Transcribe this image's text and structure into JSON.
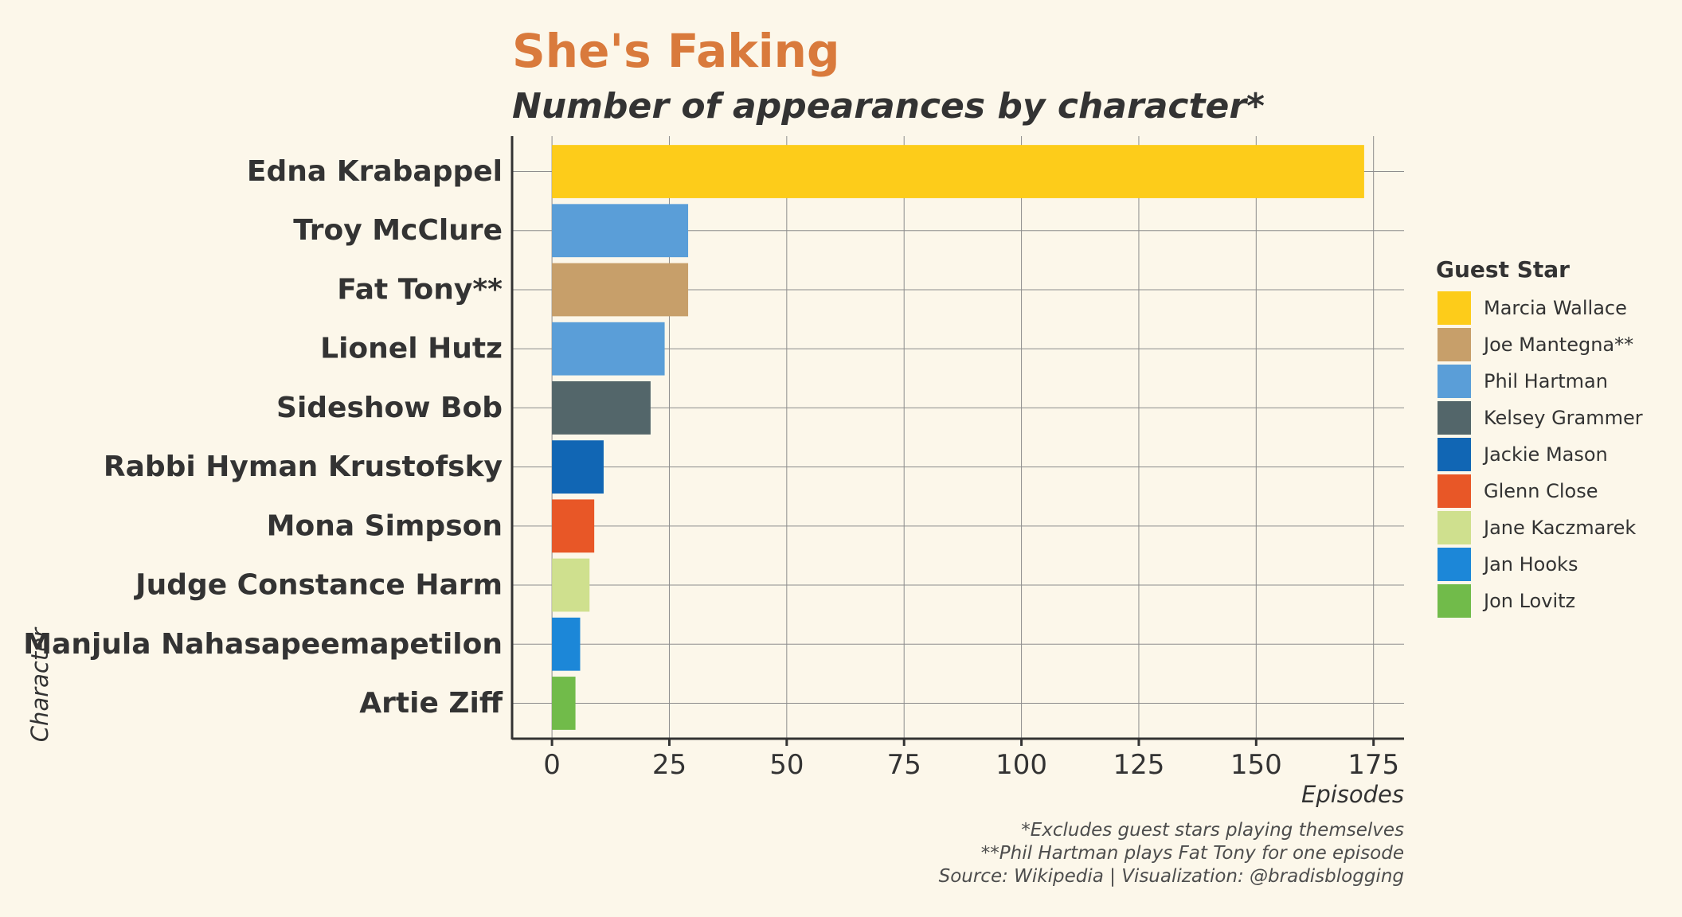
{
  "chart_data": {
    "type": "bar",
    "orientation": "horizontal",
    "title": "She's Faking",
    "subtitle": "Number of appearances by character*",
    "xlabel": "Episodes",
    "ylabel": "Character",
    "xlim": [
      -8.5,
      181.5
    ],
    "xticks": [
      0,
      25,
      50,
      75,
      100,
      125,
      150,
      175
    ],
    "grid": true,
    "legend": {
      "title": "Guest Star",
      "placement": "right",
      "entries": [
        {
          "name": "Marcia Wallace",
          "color": "#fdcc1a"
        },
        {
          "name": "Joe Mantegna**",
          "color": "#c79f6a"
        },
        {
          "name": "Phil Hartman",
          "color": "#5a9ed8"
        },
        {
          "name": "Kelsey Grammer",
          "color": "#53666a"
        },
        {
          "name": "Jackie Mason",
          "color": "#1166b4"
        },
        {
          "name": "Glenn Close",
          "color": "#e85727"
        },
        {
          "name": "Jane Kaczmarek",
          "color": "#cfe08e"
        },
        {
          "name": "Jan Hooks",
          "color": "#1c87d8"
        },
        {
          "name": "Jon Lovitz",
          "color": "#71bb4a"
        }
      ]
    },
    "bars": [
      {
        "category": "Edna Krabappel",
        "value": 173,
        "guest_star": "Marcia Wallace"
      },
      {
        "category": "Troy McClure",
        "value": 29,
        "guest_star": "Phil Hartman"
      },
      {
        "category": "Fat Tony**",
        "value": 29,
        "guest_star": "Joe Mantegna**"
      },
      {
        "category": "Lionel Hutz",
        "value": 24,
        "guest_star": "Phil Hartman"
      },
      {
        "category": "Sideshow Bob",
        "value": 21,
        "guest_star": "Kelsey Grammer"
      },
      {
        "category": "Rabbi Hyman Krustofsky",
        "value": 11,
        "guest_star": "Jackie Mason"
      },
      {
        "category": "Mona Simpson",
        "value": 9,
        "guest_star": "Glenn Close"
      },
      {
        "category": "Judge Constance Harm",
        "value": 8,
        "guest_star": "Jane Kaczmarek"
      },
      {
        "category": "Manjula Nahasapeemapetilon",
        "value": 6,
        "guest_star": "Jan Hooks"
      },
      {
        "category": "Artie Ziff",
        "value": 5,
        "guest_star": "Jon Lovitz"
      }
    ],
    "caption": [
      "*Excludes guest stars playing themselves",
      "**Phil Hartman plays Fat Tony for one episode",
      "Source: Wikipedia | Visualization: @bradisblogging"
    ]
  }
}
